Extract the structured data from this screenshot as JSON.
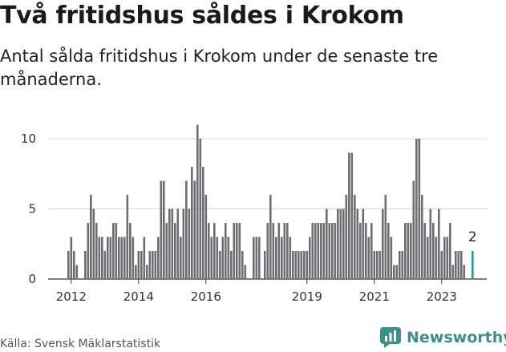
{
  "header": {
    "title": "Två fritidshus såldes i Krokom",
    "subtitle": "Antal sålda fritidshus i Krokom under de senaste tre månaderna."
  },
  "footer": {
    "source": "Källa: Svensk Mäklarstatistik",
    "brand": "Newsworthy"
  },
  "colors": {
    "bar": "#6e6e72",
    "highlight": "#2a9d8f",
    "brand": "#3d8f88",
    "grid": "#d9d9d9",
    "axis": "#333333"
  },
  "chart_data": {
    "type": "bar",
    "title": "Två fritidshus såldes i Krokom",
    "subtitle": "Antal sålda fritidshus i Krokom under de senaste tre månaderna.",
    "xlabel": "",
    "ylabel": "",
    "x_start": "2011-12",
    "x_step": "1 month",
    "x_ticks": [
      "2012",
      "2014",
      "2016",
      "2019",
      "2021",
      "2023"
    ],
    "y_ticks": [
      0,
      5,
      10
    ],
    "ylim": [
      0,
      11
    ],
    "grid": true,
    "values": [
      2,
      3,
      2,
      1,
      0,
      0,
      2,
      4,
      6,
      5,
      4,
      3,
      3,
      2,
      3,
      3,
      4,
      4,
      3,
      3,
      3,
      6,
      4,
      3,
      1,
      2,
      2,
      3,
      1,
      2,
      2,
      2,
      3,
      7,
      7,
      4,
      5,
      5,
      4,
      5,
      3,
      5,
      7,
      5,
      8,
      7,
      11,
      10,
      8,
      6,
      4,
      3,
      4,
      3,
      2,
      3,
      4,
      3,
      2,
      4,
      4,
      4,
      2,
      1,
      0,
      0,
      3,
      3,
      3,
      0,
      2,
      4,
      6,
      4,
      3,
      4,
      3,
      4,
      4,
      3,
      2,
      2,
      2,
      2,
      2,
      2,
      3,
      4,
      4,
      4,
      4,
      4,
      5,
      4,
      4,
      4,
      5,
      5,
      5,
      6,
      9,
      9,
      6,
      5,
      4,
      5,
      4,
      3,
      4,
      2,
      2,
      2,
      5,
      6,
      4,
      3,
      1,
      1,
      2,
      2,
      4,
      4,
      4,
      7,
      10,
      10,
      6,
      4,
      3,
      5,
      4,
      3,
      5,
      2,
      3,
      3,
      4,
      1,
      2,
      2,
      2,
      1,
      0,
      0,
      2
    ],
    "highlight": {
      "label": "2",
      "value": 2
    }
  }
}
